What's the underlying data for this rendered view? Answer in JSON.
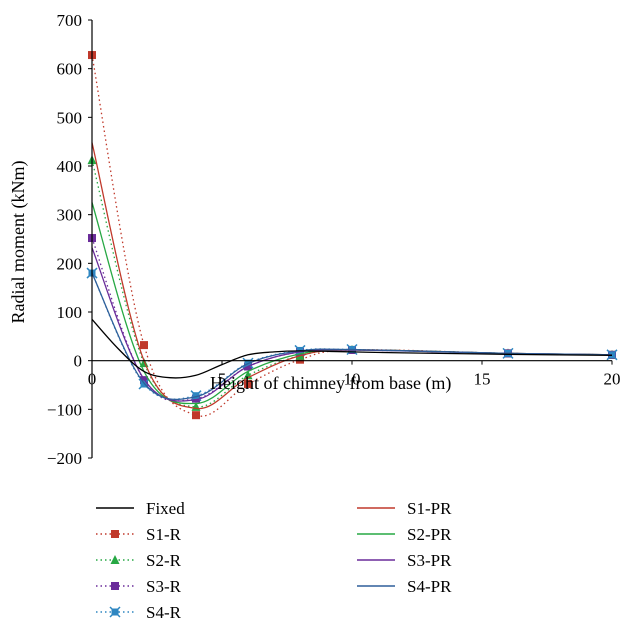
{
  "chart_data": {
    "type": "line",
    "xlabel": "Height of chimney from base (m)",
    "ylabel": "Radial moment (kNm)",
    "xlim": [
      0,
      20
    ],
    "ylim": [
      -200,
      700
    ],
    "xticks": [
      0,
      5,
      10,
      15,
      20
    ],
    "yticks": [
      -200,
      -100,
      0,
      100,
      200,
      300,
      400,
      500,
      600,
      700
    ],
    "grid": false,
    "legend_position": "bottom",
    "series": [
      {
        "name": "Fixed",
        "style": "solid",
        "marker": "none",
        "color": "#000000",
        "x": [
          0,
          1,
          2,
          3,
          4,
          5,
          6,
          7,
          8,
          10,
          12,
          16,
          20
        ],
        "y": [
          85,
          25,
          -22,
          -35,
          -30,
          -8,
          12,
          18,
          20,
          18,
          16,
          13,
          11
        ]
      },
      {
        "name": "S1-R",
        "style": "dotted",
        "marker": "square",
        "color": "#c0392b",
        "x": [
          0,
          2,
          4,
          6,
          8,
          10,
          16,
          20
        ],
        "y": [
          628,
          32,
          -112,
          -48,
          2,
          22,
          15,
          12
        ]
      },
      {
        "name": "S2-R",
        "style": "dotted",
        "marker": "triangle",
        "color": "#27a844",
        "x": [
          0,
          2,
          4,
          6,
          8,
          10,
          16,
          20
        ],
        "y": [
          412,
          -5,
          -95,
          -30,
          10,
          22,
          15,
          12
        ]
      },
      {
        "name": "S3-R",
        "style": "dotted",
        "marker": "square",
        "color": "#6a2c9a",
        "x": [
          0,
          2,
          4,
          6,
          8,
          10,
          16,
          20
        ],
        "y": [
          252,
          -40,
          -78,
          -12,
          18,
          22,
          15,
          12
        ]
      },
      {
        "name": "S4-R",
        "style": "dotted",
        "marker": "star",
        "color": "#2e86c1",
        "x": [
          0,
          2,
          4,
          6,
          8,
          10,
          16,
          20
        ],
        "y": [
          180,
          -48,
          -72,
          -5,
          21,
          23,
          15,
          12
        ]
      },
      {
        "name": "S1-PR",
        "style": "solid",
        "marker": "none",
        "color": "#c0392b",
        "x": [
          0,
          2,
          4,
          6,
          8,
          10,
          16,
          20
        ],
        "y": [
          448,
          0,
          -98,
          -35,
          10,
          22,
          15,
          12
        ]
      },
      {
        "name": "S2-PR",
        "style": "solid",
        "marker": "none",
        "color": "#27a844",
        "x": [
          0,
          2,
          4,
          6,
          8,
          10,
          16,
          20
        ],
        "y": [
          325,
          -22,
          -88,
          -22,
          14,
          22,
          15,
          12
        ]
      },
      {
        "name": "S3-PR",
        "style": "solid",
        "marker": "none",
        "color": "#6a2c9a",
        "x": [
          0,
          2,
          4,
          6,
          8,
          10,
          16,
          20
        ],
        "y": [
          232,
          -38,
          -80,
          -12,
          18,
          22,
          15,
          12
        ]
      },
      {
        "name": "S4-PR",
        "style": "solid",
        "marker": "none",
        "color": "#2e5f9a",
        "x": [
          0,
          2,
          4,
          6,
          8,
          10,
          16,
          20
        ],
        "y": [
          180,
          -46,
          -74,
          -6,
          20,
          23,
          15,
          12
        ]
      }
    ]
  }
}
